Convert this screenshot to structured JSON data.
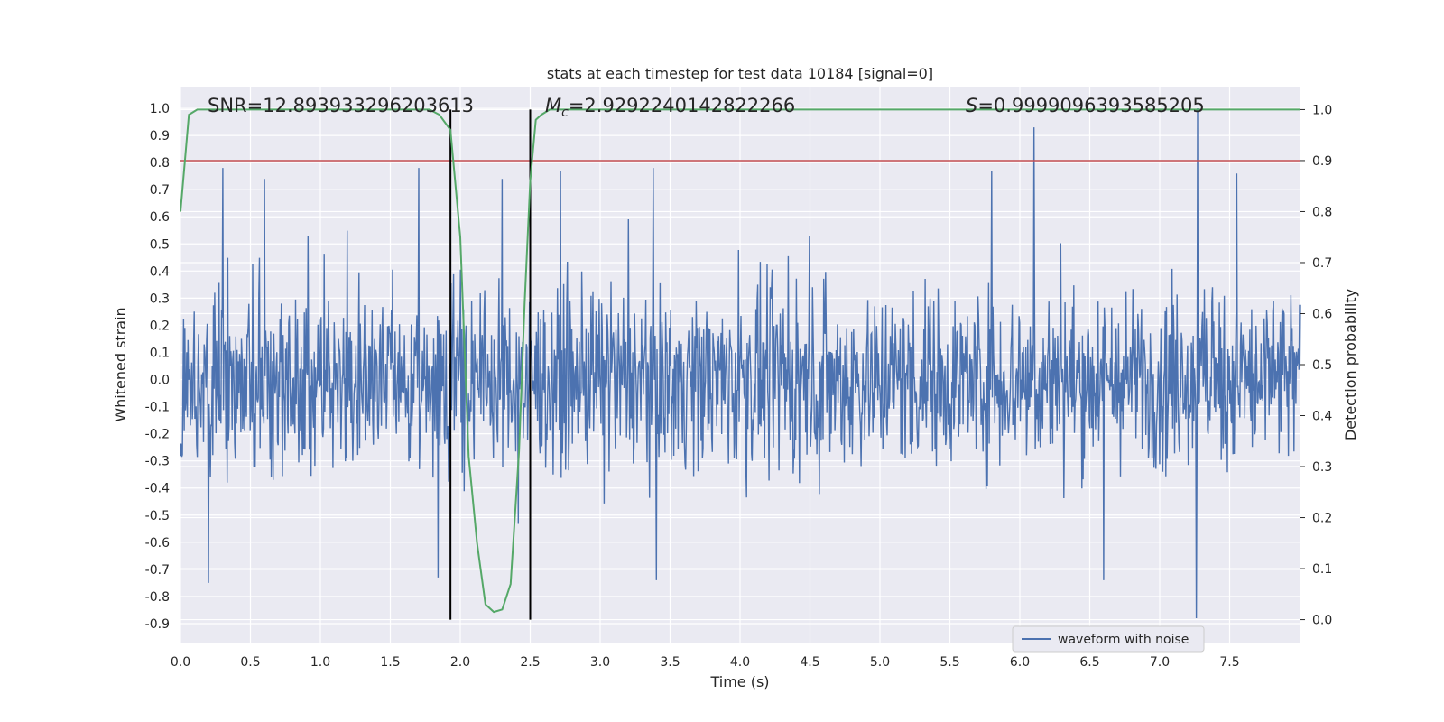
{
  "chart_data": {
    "type": "line",
    "title": "stats at each timestep for test data 10184 [signal=0]",
    "xlabel": "Time (s)",
    "ylabel": "Whitened strain",
    "ylabel_right": "Detection probability",
    "xlim": [
      0.0,
      8.0
    ],
    "ylim": [
      -0.97,
      1.08
    ],
    "ylim_right": [
      -0.045,
      1.045
    ],
    "x_ticks": [
      "0.0",
      "0.5",
      "1.0",
      "1.5",
      "2.0",
      "2.5",
      "3.0",
      "3.5",
      "4.0",
      "4.5",
      "5.0",
      "5.5",
      "6.0",
      "6.5",
      "7.0",
      "7.5"
    ],
    "y_ticks": [
      "1.0",
      "0.9",
      "0.8",
      "0.7",
      "0.6",
      "0.5",
      "0.4",
      "0.3",
      "0.2",
      "0.1",
      "0.0",
      "-0.1",
      "-0.2",
      "-0.3",
      "-0.4",
      "-0.5",
      "-0.6",
      "-0.7",
      "-0.8",
      "-0.9"
    ],
    "y_right_ticks": [
      "1.0",
      "0.9",
      "0.8",
      "0.7",
      "0.6",
      "0.5",
      "0.4",
      "0.3",
      "0.2",
      "0.1",
      "0.0"
    ],
    "grid": true,
    "legend": {
      "position": "lower-right",
      "entries": [
        "waveform with noise"
      ]
    },
    "annotations": {
      "snr": "SNR=12.893933296203613",
      "mc_symbol": "M",
      "mc_sub": "c",
      "mc_value": "=2.9292240142822266",
      "s_symbol": "S",
      "s_value": "=0.9999096393585205"
    },
    "threshold": 0.9,
    "vertical_lines": [
      1.93,
      2.5
    ],
    "waveform": {
      "name": "waveform with noise",
      "t_start": 0.0,
      "t_end": 8.0,
      "samples": 1800,
      "base_amplitude": 0.4,
      "spikes": [
        {
          "t": 6.1,
          "value": 0.93
        },
        {
          "t": 7.27,
          "value": 1.0
        },
        {
          "t": 7.26,
          "value": -0.88
        },
        {
          "t": 0.2,
          "value": -0.75
        },
        {
          "t": 1.84,
          "value": -0.73
        },
        {
          "t": 0.6,
          "value": 0.74
        },
        {
          "t": 2.3,
          "value": 0.74
        },
        {
          "t": 5.8,
          "value": 0.77
        },
        {
          "t": 7.55,
          "value": 0.76
        },
        {
          "t": 3.4,
          "value": -0.74
        },
        {
          "t": 6.6,
          "value": -0.74
        }
      ]
    },
    "probability_series": {
      "name": "detection probability",
      "x": [
        0.0,
        0.06,
        0.12,
        0.5,
        1.0,
        1.5,
        1.78,
        1.85,
        1.93,
        2.0,
        2.06,
        2.12,
        2.18,
        2.24,
        2.3,
        2.36,
        2.42,
        2.46,
        2.5,
        2.54,
        2.58,
        2.64,
        2.7,
        3.0,
        4.0,
        5.0,
        6.0,
        7.0,
        8.0
      ],
      "y": [
        0.8,
        0.99,
        1.0,
        1.0,
        1.0,
        1.0,
        1.0,
        0.99,
        0.96,
        0.75,
        0.32,
        0.15,
        0.03,
        0.015,
        0.02,
        0.07,
        0.33,
        0.62,
        0.86,
        0.98,
        0.99,
        1.0,
        1.0,
        1.0,
        1.0,
        1.0,
        1.0,
        1.0,
        1.0
      ]
    },
    "colors": {
      "background": "#eaeaf2",
      "grid": "#ffffff",
      "waveform": "#4c72b0",
      "probability": "#55a868",
      "threshold": "#c44e52",
      "vline": "#000000"
    }
  }
}
